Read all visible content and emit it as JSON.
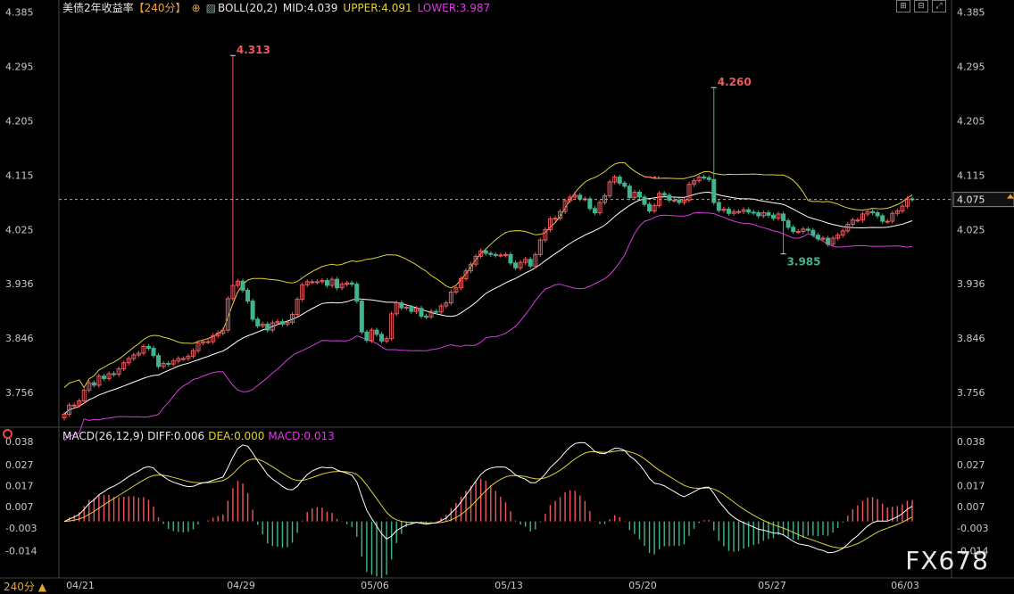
{
  "header": {
    "title": "美债2年收益率",
    "period": "【240分】",
    "indicator": "BOLL(20,2)",
    "mid": "MID:4.039",
    "upper": "UPPER:4.091",
    "lower": "LOWER:3.987"
  },
  "sub_header": {
    "indicator": "MACD(26,12,9)",
    "diff": "DIFF:0.006",
    "dea": "DEA:0.000",
    "macd": "MACD:0.013"
  },
  "period_label": "240分",
  "watermark": "FX678",
  "colors": {
    "up": "#f0585e",
    "down": "#3fb58f",
    "mid": "#ffffff",
    "upper": "#e0d23a",
    "lower": "#d63ddd",
    "current": "#e8a33d"
  },
  "chart_data": [
    {
      "type": "candlestick",
      "title": "美债2年收益率",
      "y_ticks": [
        "4.385",
        "4.295",
        "4.205",
        "4.115",
        "4.025",
        "3.936",
        "3.846",
        "3.756"
      ],
      "ylim": [
        3.7,
        4.39
      ],
      "x_labels": [
        "04/21",
        "04/29",
        "05/06",
        "05/13",
        "05/20",
        "05/27",
        "06/03"
      ],
      "current_value": 4.075,
      "current_label": "4.075",
      "annotations": [
        {
          "text": "4.313",
          "value": 4.313,
          "date": "05/02"
        },
        {
          "text": "4.260",
          "value": 4.26,
          "date": "05/24"
        },
        {
          "text": "3.985",
          "value": 3.985,
          "date": "05/30"
        }
      ],
      "close": [
        3.72,
        3.735,
        3.735,
        3.742,
        3.76,
        3.772,
        3.768,
        3.783,
        3.779,
        3.787,
        3.786,
        3.795,
        3.805,
        3.812,
        3.818,
        3.821,
        3.832,
        3.829,
        3.817,
        3.799,
        3.804,
        3.803,
        3.808,
        3.812,
        3.812,
        3.816,
        3.825,
        3.838,
        3.84,
        3.84,
        3.85,
        3.854,
        3.859,
        3.911,
        3.933,
        3.94,
        3.925,
        3.907,
        3.877,
        3.866,
        3.869,
        3.859,
        3.871,
        3.873,
        3.869,
        3.872,
        3.885,
        3.91,
        3.934,
        3.939,
        3.939,
        3.939,
        3.941,
        3.933,
        3.943,
        3.929,
        3.935,
        3.937,
        3.935,
        3.907,
        3.856,
        3.842,
        3.859,
        3.852,
        3.841,
        3.845,
        3.886,
        3.904,
        3.896,
        3.897,
        3.89,
        3.895,
        3.882,
        3.881,
        3.89,
        3.889,
        3.899,
        3.904,
        3.922,
        3.929,
        3.944,
        3.957,
        3.968,
        3.981,
        3.99,
        3.986,
        3.984,
        3.983,
        3.983,
        3.984,
        3.97,
        3.962,
        3.971,
        3.976,
        3.965,
        3.984,
        4.008,
        4.025,
        4.043,
        4.044,
        4.055,
        4.073,
        4.079,
        4.082,
        4.076,
        4.076,
        4.06,
        4.053,
        4.07,
        4.081,
        4.104,
        4.112,
        4.102,
        4.097,
        4.078,
        4.087,
        4.079,
        4.067,
        4.056,
        4.065,
        4.085,
        4.082,
        4.074,
        4.074,
        4.07,
        4.074,
        4.1,
        4.106,
        4.112,
        4.111,
        4.108,
        4.07,
        4.057,
        4.059,
        4.052,
        4.055,
        4.055,
        4.058,
        4.054,
        4.053,
        4.048,
        4.053,
        4.049,
        4.044,
        4.051,
        4.04,
        4.029,
        4.022,
        4.022,
        4.026,
        4.024,
        4.016,
        4.01,
        4.011,
        4.001,
        4.011,
        4.016,
        4.023,
        4.034,
        4.041,
        4.041,
        4.051,
        4.055,
        4.053,
        4.048,
        4.039,
        4.039,
        4.052,
        4.056,
        4.064,
        4.076,
        4.075
      ],
      "bollinger": {
        "window": 20,
        "k": 2
      },
      "macd": {
        "fast": 12,
        "slow": 26,
        "signal": 9
      },
      "macd_y_ticks": [
        "0.038",
        "0.027",
        "0.017",
        "0.007",
        "-0.003",
        "-0.014"
      ],
      "macd_ylim": [
        -0.026,
        0.041
      ]
    }
  ]
}
